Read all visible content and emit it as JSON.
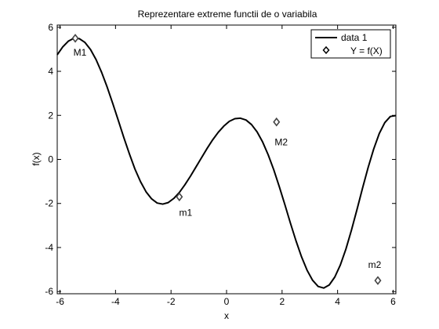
{
  "chart_data": {
    "type": "line",
    "title": "Reprezentare extreme functii de o variabila",
    "xlabel": "x",
    "ylabel": "f(x)",
    "xlim": [
      -6.1,
      6.1
    ],
    "ylim": [
      -6.1,
      6.1
    ],
    "xticks": [
      -6,
      -4,
      -2,
      0,
      2,
      4,
      6
    ],
    "yticks": [
      -6,
      -4,
      -2,
      0,
      2,
      4,
      6
    ],
    "xtick_labels": [
      "-6",
      "-4",
      "-2",
      "0",
      "2",
      "4",
      "6"
    ],
    "ytick_labels": [
      "-6",
      "-4",
      "-2",
      "0",
      "2",
      "4",
      "6"
    ],
    "grid": false,
    "legend_position": "top-right",
    "series": [
      {
        "name": "data 1",
        "style": "line",
        "color": "#000000",
        "x": [
          -6.1,
          -5.9,
          -5.7,
          -5.5,
          -5.3,
          -5.1,
          -4.9,
          -4.7,
          -4.5,
          -4.3,
          -4.1,
          -3.9,
          -3.7,
          -3.5,
          -3.3,
          -3.1,
          -2.9,
          -2.7,
          -2.5,
          -2.3,
          -2.1,
          -1.9,
          -1.7,
          -1.5,
          -1.3,
          -1.1,
          -0.9,
          -0.7,
          -0.5,
          -0.3,
          -0.1,
          0.1,
          0.3,
          0.5,
          0.7,
          0.9,
          1.1,
          1.3,
          1.5,
          1.7,
          1.9,
          2.1,
          2.3,
          2.5,
          2.7,
          2.9,
          3.1,
          3.3,
          3.5,
          3.7,
          3.9,
          4.1,
          4.3,
          4.5,
          4.7,
          4.9,
          5.1,
          5.3,
          5.5,
          5.7,
          5.9,
          6.1
        ],
        "y": [
          4.75,
          5.11,
          5.37,
          5.5,
          5.48,
          5.31,
          4.99,
          4.53,
          3.95,
          3.28,
          2.54,
          1.77,
          0.99,
          0.25,
          -0.44,
          -1.01,
          -1.47,
          -1.79,
          -1.98,
          -2.03,
          -1.96,
          -1.77,
          -1.5,
          -1.15,
          -0.76,
          -0.34,
          0.08,
          0.5,
          0.89,
          1.23,
          1.51,
          1.73,
          1.85,
          1.87,
          1.79,
          1.58,
          1.25,
          0.79,
          0.21,
          -0.47,
          -1.24,
          -2.05,
          -2.89,
          -3.69,
          -4.42,
          -5.03,
          -5.49,
          -5.77,
          -5.84,
          -5.7,
          -5.34,
          -4.79,
          -4.07,
          -3.21,
          -2.27,
          -1.3,
          -0.37,
          0.47,
          1.17,
          1.67,
          1.95,
          1.99
        ]
      },
      {
        "name": "Y = f(X)",
        "style": "marker",
        "marker": "diamond",
        "color": "#000000",
        "x": [
          -5.45,
          -1.7,
          1.8,
          5.45
        ],
        "y": [
          5.5,
          -1.7,
          1.7,
          -5.5
        ]
      }
    ],
    "annotations": [
      {
        "text": "M1",
        "x": -5.45,
        "y": 5.5
      },
      {
        "text": "m1",
        "x": -1.7,
        "y": -1.7
      },
      {
        "text": "M2",
        "x": 1.8,
        "y": 1.7
      },
      {
        "text": "m2",
        "x": 5.45,
        "y": -5.5
      }
    ]
  }
}
